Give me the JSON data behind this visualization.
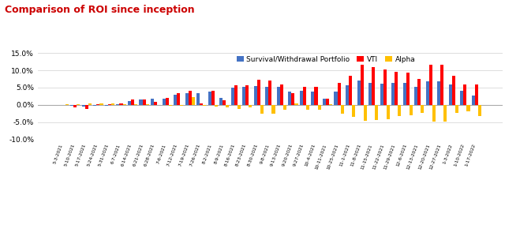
{
  "title": "Comparison of ROI since inception",
  "title_color": "#cc0000",
  "legend_labels": [
    "Survival/Withdrawal Portfolio",
    "VTI",
    "Alpha"
  ],
  "bar_colors": [
    "#4472c4",
    "#ff0000",
    "#ffc000"
  ],
  "categories": [
    "5-3-2021",
    "5-10-2021",
    "5-17-2021",
    "5-24-2021",
    "5-31-2021",
    "6-7-2021",
    "6-14-2021",
    "6-21-2021",
    "6-28-2021",
    "7-6-2021",
    "7-12-2021",
    "7-19-2021",
    "7-26-2021",
    "8-2-2021",
    "8-9-2021",
    "8-16-2021",
    "8-23-2021",
    "8-30-2021",
    "9-8-2021",
    "9-13-2021",
    "9-20-2021",
    "9-27-2021",
    "10-4-2021",
    "10-11-2021",
    "10-25-2021",
    "11-1-2021",
    "11-8-2021",
    "11-15-2021",
    "11-22-2021",
    "11-29-2021",
    "12-6-2021",
    "12-13-2021",
    "12-20-2021",
    "12-27-2021",
    "1-3-2022",
    "1-10-2022",
    "1-17-2022"
  ],
  "portfolio": [
    0.0,
    -0.3,
    -0.5,
    -0.3,
    -0.2,
    0.3,
    1.0,
    1.5,
    1.8,
    1.7,
    3.0,
    3.3,
    3.3,
    3.8,
    2.1,
    4.9,
    5.3,
    5.5,
    5.2,
    5.1,
    3.8,
    4.0,
    3.9,
    1.8,
    3.9,
    5.6,
    7.0,
    6.4,
    6.1,
    6.3,
    6.3,
    5.2,
    6.7,
    6.8,
    6.0,
    4.0,
    2.7
  ],
  "vti": [
    0.0,
    -0.7,
    -1.1,
    0.1,
    0.1,
    0.5,
    1.5,
    1.5,
    0.9,
    2.0,
    3.3,
    4.0,
    0.5,
    4.0,
    1.3,
    5.7,
    5.6,
    7.2,
    7.1,
    6.0,
    3.3,
    5.3,
    5.3,
    1.7,
    6.3,
    8.4,
    11.5,
    10.9,
    10.3,
    9.5,
    9.4,
    7.6,
    11.5,
    11.5,
    8.4,
    5.8,
    5.9
  ],
  "alpha": [
    0.3,
    0.3,
    0.5,
    0.4,
    0.4,
    0.1,
    0.1,
    0.1,
    0.0,
    -0.3,
    -0.3,
    2.3,
    -0.3,
    -0.5,
    -0.8,
    -1.2,
    -0.8,
    -2.5,
    -2.5,
    -1.5,
    0.5,
    -1.5,
    -1.5,
    0.2,
    -2.5,
    -3.5,
    -4.5,
    -4.4,
    -4.2,
    -3.2,
    -3.1,
    -2.4,
    -4.8,
    -4.8,
    -2.4,
    -1.8,
    -3.2
  ],
  "ylim": [
    -10.0,
    16.0
  ],
  "yticks": [
    -10.0,
    -5.0,
    0.0,
    5.0,
    10.0,
    15.0
  ],
  "background_color": "#ffffff",
  "grid_color": "#d8d8d8",
  "bar_width": 0.28
}
